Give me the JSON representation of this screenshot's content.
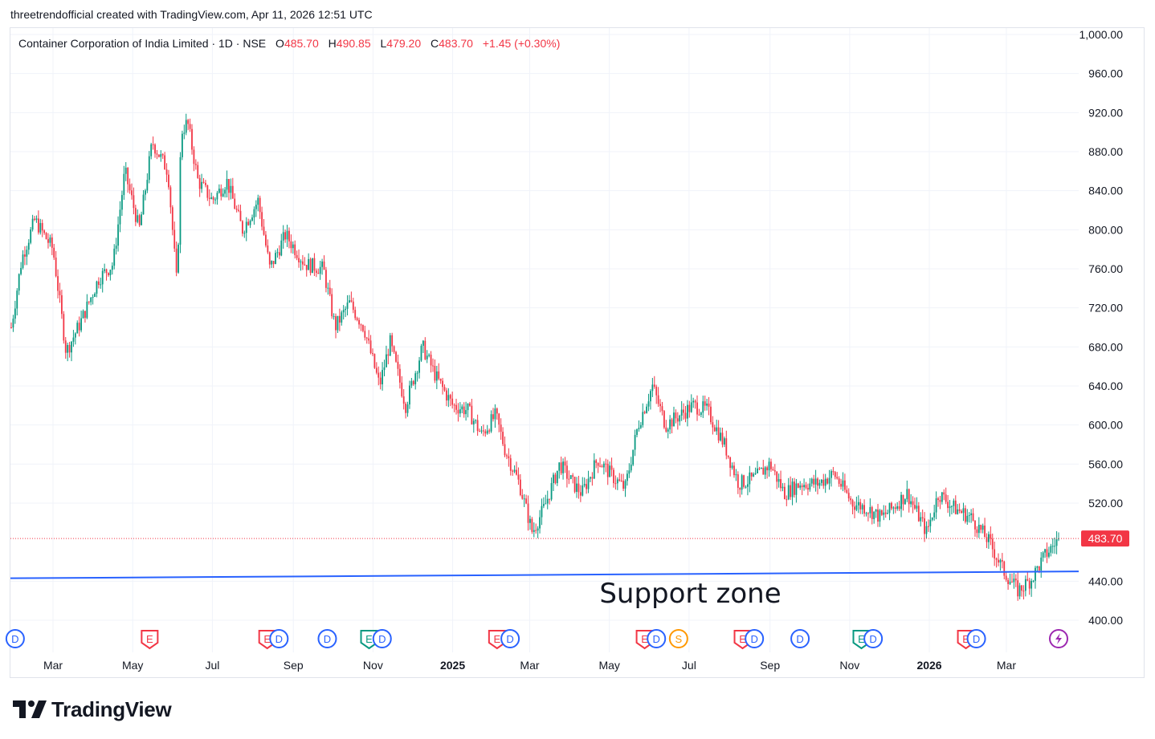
{
  "header": {
    "credit": "threetrendofficial created with TradingView.com, Apr 11, 2026 12:51 UTC"
  },
  "legend": {
    "symbol": "Container Corporation of India Limited · 1D · NSE",
    "open_label": "O",
    "open": "485.70",
    "high_label": "H",
    "high": "490.85",
    "low_label": "L",
    "low": "479.20",
    "close_label": "C",
    "close": "483.70",
    "change": "+1.45 (+0.30%)"
  },
  "footer": {
    "brand": "TradingView"
  },
  "colors": {
    "up": "#089981",
    "down": "#f23645",
    "support": "#2962ff",
    "grid": "#f0f3fa",
    "axis_text": "#131722"
  },
  "chart_data": {
    "type": "candlestick",
    "ylim": [
      400,
      1000
    ],
    "y_ticks": [
      400,
      440,
      520,
      560,
      600,
      640,
      680,
      720,
      760,
      800,
      840,
      880,
      920,
      960,
      1000
    ],
    "y_tick_labels": [
      "400.00",
      "440.00",
      "520.00",
      "560.00",
      "600.00",
      "640.00",
      "680.00",
      "720.00",
      "760.00",
      "800.00",
      "840.00",
      "880.00",
      "920.00",
      "960.00",
      "1,000.00"
    ],
    "x_ticks": [
      "Mar",
      "May",
      "Jul",
      "Sep",
      "Nov",
      "2025",
      "Mar",
      "May",
      "Jul",
      "Sep",
      "Nov",
      "2026",
      "Mar"
    ],
    "x_tick_bold": [
      false,
      false,
      false,
      false,
      false,
      true,
      false,
      false,
      false,
      false,
      false,
      true,
      false
    ],
    "x_range": [
      "2024-01-29",
      "2026-04-10"
    ],
    "x_tick_dates": [
      "2024-03-01",
      "2024-05-01",
      "2024-07-01",
      "2024-09-01",
      "2024-11-01",
      "2025-01-01",
      "2025-03-01",
      "2025-05-01",
      "2025-07-01",
      "2025-09-01",
      "2025-11-01",
      "2026-01-01",
      "2026-03-01"
    ],
    "price_path": [
      [
        "2024-01-29",
        700
      ],
      [
        "2024-02-06",
        770
      ],
      [
        "2024-02-16",
        810
      ],
      [
        "2024-03-01",
        780
      ],
      [
        "2024-03-11",
        675
      ],
      [
        "2024-03-22",
        705
      ],
      [
        "2024-04-05",
        750
      ],
      [
        "2024-04-16",
        765
      ],
      [
        "2024-04-25",
        860
      ],
      [
        "2024-05-06",
        800
      ],
      [
        "2024-05-16",
        890
      ],
      [
        "2024-05-28",
        860
      ],
      [
        "2024-06-04",
        740
      ],
      [
        "2024-06-07",
        900
      ],
      [
        "2024-06-12",
        910
      ],
      [
        "2024-06-20",
        850
      ],
      [
        "2024-07-01",
        830
      ],
      [
        "2024-07-12",
        850
      ],
      [
        "2024-07-24",
        800
      ],
      [
        "2024-08-05",
        830
      ],
      [
        "2024-08-14",
        760
      ],
      [
        "2024-08-26",
        795
      ],
      [
        "2024-09-10",
        765
      ],
      [
        "2024-09-24",
        760
      ],
      [
        "2024-10-03",
        700
      ],
      [
        "2024-10-14",
        725
      ],
      [
        "2024-10-25",
        700
      ],
      [
        "2024-11-06",
        640
      ],
      [
        "2024-11-14",
        685
      ],
      [
        "2024-11-26",
        620
      ],
      [
        "2024-12-09",
        680
      ],
      [
        "2024-12-19",
        650
      ],
      [
        "2025-01-01",
        620
      ],
      [
        "2025-01-13",
        615
      ],
      [
        "2025-01-23",
        590
      ],
      [
        "2025-02-03",
        610
      ],
      [
        "2025-02-10",
        575
      ],
      [
        "2025-02-21",
        540
      ],
      [
        "2025-03-03",
        490
      ],
      [
        "2025-03-12",
        515
      ],
      [
        "2025-03-24",
        560
      ],
      [
        "2025-04-03",
        540
      ],
      [
        "2025-04-10",
        530
      ],
      [
        "2025-04-22",
        565
      ],
      [
        "2025-05-05",
        545
      ],
      [
        "2025-05-13",
        535
      ],
      [
        "2025-05-23",
        600
      ],
      [
        "2025-06-03",
        640
      ],
      [
        "2025-06-13",
        600
      ],
      [
        "2025-06-24",
        610
      ],
      [
        "2025-07-04",
        620
      ],
      [
        "2025-07-15",
        615
      ],
      [
        "2025-07-28",
        580
      ],
      [
        "2025-08-08",
        540
      ],
      [
        "2025-08-20",
        545
      ],
      [
        "2025-09-01",
        560
      ],
      [
        "2025-09-12",
        530
      ],
      [
        "2025-09-24",
        540
      ],
      [
        "2025-10-08",
        540
      ],
      [
        "2025-10-20",
        550
      ],
      [
        "2025-11-03",
        520
      ],
      [
        "2025-11-14",
        515
      ],
      [
        "2025-11-25",
        505
      ],
      [
        "2025-12-04",
        515
      ],
      [
        "2025-12-15",
        530
      ],
      [
        "2025-12-30",
        490
      ],
      [
        "2026-01-08",
        530
      ],
      [
        "2026-01-20",
        515
      ],
      [
        "2026-02-02",
        505
      ],
      [
        "2026-02-16",
        480
      ],
      [
        "2026-02-27",
        450
      ],
      [
        "2026-03-10",
        430
      ],
      [
        "2026-03-20",
        442
      ],
      [
        "2026-03-30",
        465
      ],
      [
        "2026-04-10",
        483.7
      ]
    ],
    "candle_count": 540,
    "last_price": 483.7,
    "last_price_label": "483.70",
    "support_line": {
      "start": [
        "2024-01-29",
        443
      ],
      "end": [
        "2026-04-10",
        450
      ]
    },
    "annotations": [
      {
        "text": "Support zone",
        "x": "2025-07-02",
        "y": 418
      }
    ],
    "events": [
      {
        "type": "D",
        "date": "2024-02-01",
        "color": "#2962ff"
      },
      {
        "type": "E",
        "date": "2024-05-14",
        "color": "#f23645"
      },
      {
        "type": "E",
        "date": "2024-08-12",
        "color": "#f23645"
      },
      {
        "type": "D",
        "date": "2024-08-21",
        "color": "#2962ff"
      },
      {
        "type": "D",
        "date": "2024-09-27",
        "color": "#2962ff"
      },
      {
        "type": "E",
        "date": "2024-10-29",
        "color": "#089981"
      },
      {
        "type": "D",
        "date": "2024-11-08",
        "color": "#2962ff"
      },
      {
        "type": "E",
        "date": "2025-02-04",
        "color": "#f23645"
      },
      {
        "type": "D",
        "date": "2025-02-14",
        "color": "#2962ff"
      },
      {
        "type": "E",
        "date": "2025-05-28",
        "color": "#f23645"
      },
      {
        "type": "D",
        "date": "2025-06-06",
        "color": "#2962ff"
      },
      {
        "type": "S",
        "date": "2025-06-23",
        "color": "#ff9800"
      },
      {
        "type": "E",
        "date": "2025-08-11",
        "color": "#f23645"
      },
      {
        "type": "D",
        "date": "2025-08-20",
        "color": "#2962ff"
      },
      {
        "type": "D",
        "date": "2025-09-24",
        "color": "#2962ff"
      },
      {
        "type": "E",
        "date": "2025-11-10",
        "color": "#089981"
      },
      {
        "type": "D",
        "date": "2025-11-19",
        "color": "#2962ff"
      },
      {
        "type": "E",
        "date": "2026-01-29",
        "color": "#f23645"
      },
      {
        "type": "D",
        "date": "2026-02-06",
        "color": "#2962ff"
      },
      {
        "type": "lightning",
        "date": "2026-04-10",
        "color": "#9c27b0"
      }
    ]
  }
}
